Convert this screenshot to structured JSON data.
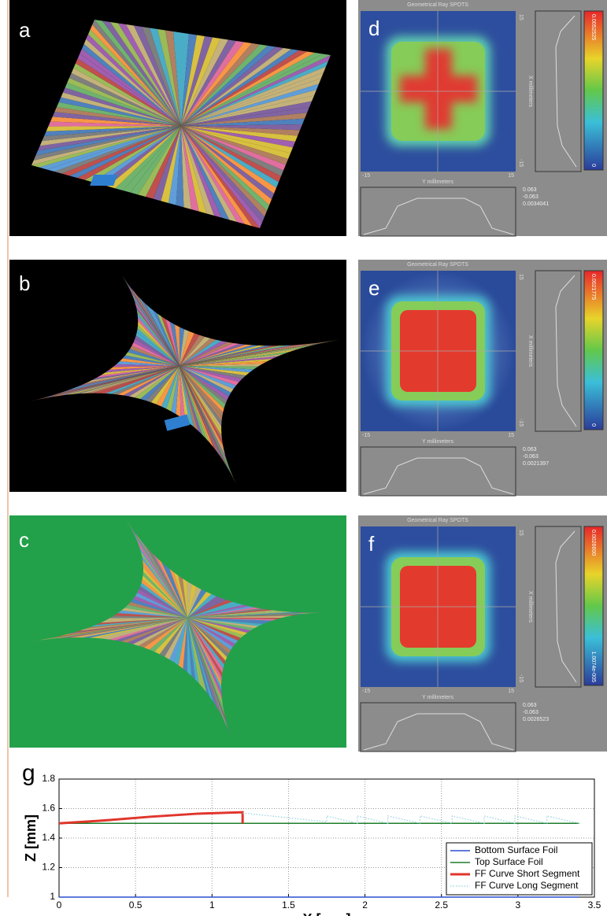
{
  "panels": [
    {
      "label": "a"
    },
    {
      "label": "b"
    },
    {
      "label": "c"
    }
  ],
  "spot_panels": [
    {
      "label": "d",
      "title": "Geometrical Ray SPOTS",
      "top_tick": "15",
      "bottom_tick": "-15",
      "left_tick": "-15",
      "right_tick": "15",
      "x_axis_label": "X millimeters",
      "y_axis_label": "Y millimeters",
      "colorbar_max": "0.0052525",
      "colorbar_min": "0",
      "stats": [
        "0.063",
        "-0.063",
        "0.0034041"
      ]
    },
    {
      "label": "e",
      "title": "Geometrical Ray SPOTS",
      "top_tick": "15",
      "bottom_tick": "-15",
      "left_tick": "-15",
      "right_tick": "15",
      "x_axis_label": "X millimeters",
      "y_axis_label": "Y millimeters",
      "colorbar_max": "0.0021775",
      "colorbar_min": "0",
      "stats": [
        "0.063",
        "-0.063",
        "0.0021397"
      ]
    },
    {
      "label": "f",
      "title": "Geometrical Ray SPOTS",
      "top_tick": "15",
      "bottom_tick": "-15",
      "left_tick": "-15",
      "right_tick": "15",
      "x_axis_label": "X millimeters",
      "y_axis_label": "Y millimeters",
      "colorbar_max": "0.0026600",
      "colorbar_min": "1.0074e-005",
      "stats": [
        "0.063",
        "-0.063",
        "0.0026523"
      ]
    }
  ],
  "chart_data": {
    "type": "line",
    "panel_label": "g",
    "xlabel": "X [mm]",
    "ylabel": "Z [mm]",
    "xlim": [
      0,
      3.5
    ],
    "ylim": [
      1,
      1.8
    ],
    "xticks": [
      0,
      0.5,
      1,
      1.5,
      2,
      2.5,
      3,
      3.5
    ],
    "yticks": [
      1,
      1.2,
      1.4,
      1.6,
      1.8
    ],
    "grid": true,
    "legend": "lower right",
    "series": [
      {
        "name": "Bottom Surface Foil",
        "color": "#2a4fd0",
        "line_style": "solid",
        "x": [
          0,
          3.4
        ],
        "values": [
          1,
          1
        ]
      },
      {
        "name": "Top Surface Foil",
        "color": "#1e7d2a",
        "line_style": "solid",
        "x": [
          0,
          3.4
        ],
        "values": [
          1.5,
          1.5
        ]
      },
      {
        "name": "FF Curve Short Segment",
        "color": "#e0352b",
        "line_style": "thick",
        "x": [
          0,
          0.3,
          0.6,
          0.9,
          1.2,
          1.2
        ],
        "values": [
          1.5,
          1.52,
          1.545,
          1.565,
          1.575,
          1.5
        ]
      },
      {
        "name": "FF Curve Long Segment",
        "color": "#8fd3e0",
        "line_style": "dotted",
        "x": [
          1.2,
          1.75,
          1.75,
          1.95,
          1.95,
          2.15,
          2.15,
          2.36,
          2.36,
          2.57,
          2.57,
          2.78,
          2.78,
          2.98,
          2.98,
          3.19,
          3.19,
          3.4
        ],
        "values": [
          1.57,
          1.51,
          1.55,
          1.5,
          1.55,
          1.5,
          1.55,
          1.5,
          1.55,
          1.5,
          1.55,
          1.5,
          1.55,
          1.5,
          1.55,
          1.5,
          1.55,
          1.5
        ]
      }
    ]
  }
}
